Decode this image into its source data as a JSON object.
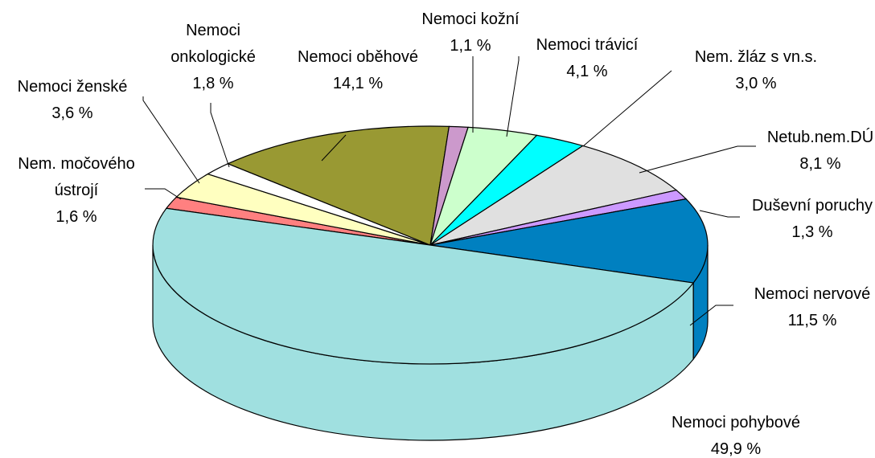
{
  "chart_data": {
    "type": "pie3d",
    "categories": [
      "Nem. močového ústrojí",
      "Nemoci ženské",
      "Nemoci onkologické",
      "Nemoci oběhové",
      "Nemoci kožní",
      "Nemoci trávicí",
      "Nem. žláz s vn.s.",
      "Netub.nem.DÚ",
      "Duševní poruchy",
      "Nemoci nervové",
      "Nemoci pohybové"
    ],
    "values": [
      1.6,
      3.6,
      1.8,
      14.1,
      1.1,
      4.1,
      3.0,
      8.1,
      1.3,
      11.5,
      49.9
    ],
    "value_labels": [
      "1,6 %",
      "3,6 %",
      "1,8 %",
      "14,1 %",
      "1,1 %",
      "4,1 %",
      "3,0 %",
      "8,1 %",
      "1,3 %",
      "11,5 %",
      "49,9 %"
    ],
    "colors": [
      "#ff8080",
      "#ffffc0",
      "#ffffff",
      "#999933",
      "#cc99cc",
      "#ccffcc",
      "#00ffff",
      "#e0e0e0",
      "#cc99ff",
      "#0080c0",
      "#a0e0e0"
    ]
  }
}
